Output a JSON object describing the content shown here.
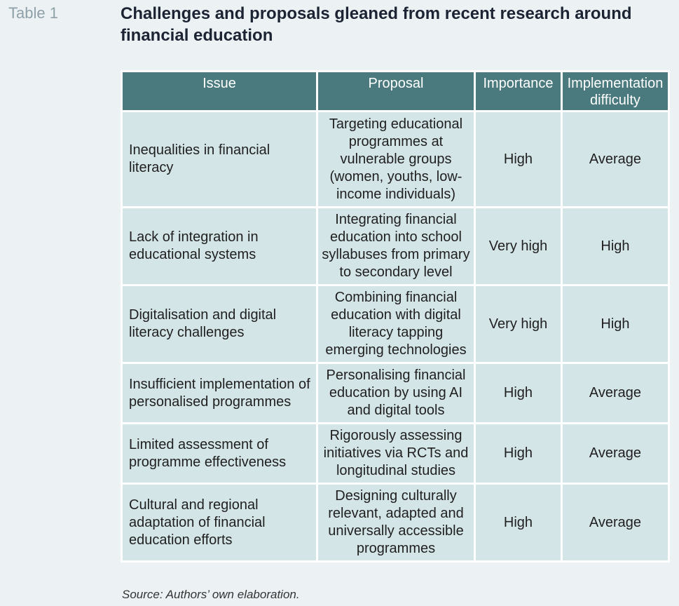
{
  "table_label": "Table 1",
  "title": "Challenges and proposals gleaned from recent research around financial education",
  "columns": [
    "Issue",
    "Proposal",
    "Importance",
    "Implementation difficulty"
  ],
  "rows": [
    {
      "issue": "Inequalities in financial literacy",
      "proposal": "Targeting educational programmes at vulnerable groups (women, youths, low-income individuals)",
      "importance": "High",
      "difficulty": "Average"
    },
    {
      "issue": "Lack of integration in educational systems",
      "proposal": "Integrating financial education into school syllabuses from primary to secondary level",
      "importance": "Very high",
      "difficulty": "High"
    },
    {
      "issue": "Digitalisation and digital literacy challenges",
      "proposal": "Combining financial education with digital literacy tapping emerging technologies",
      "importance": "Very high",
      "difficulty": "High"
    },
    {
      "issue": "Insufficient implementation of personalised programmes",
      "proposal": "Personalising financial education by using AI and digital tools",
      "importance": "High",
      "difficulty": "Average"
    },
    {
      "issue": "Limited assessment of programme effectiveness",
      "proposal": "Rigorously assessing initiatives via RCTs and longitudinal studies",
      "importance": "High",
      "difficulty": "Average"
    },
    {
      "issue": "Cultural and regional adaptation of financial education efforts",
      "proposal": "Designing culturally relevant, adapted and universally accessible programmes",
      "importance": "High",
      "difficulty": "Average"
    }
  ],
  "source": "Source: Authors’ own elaboration."
}
